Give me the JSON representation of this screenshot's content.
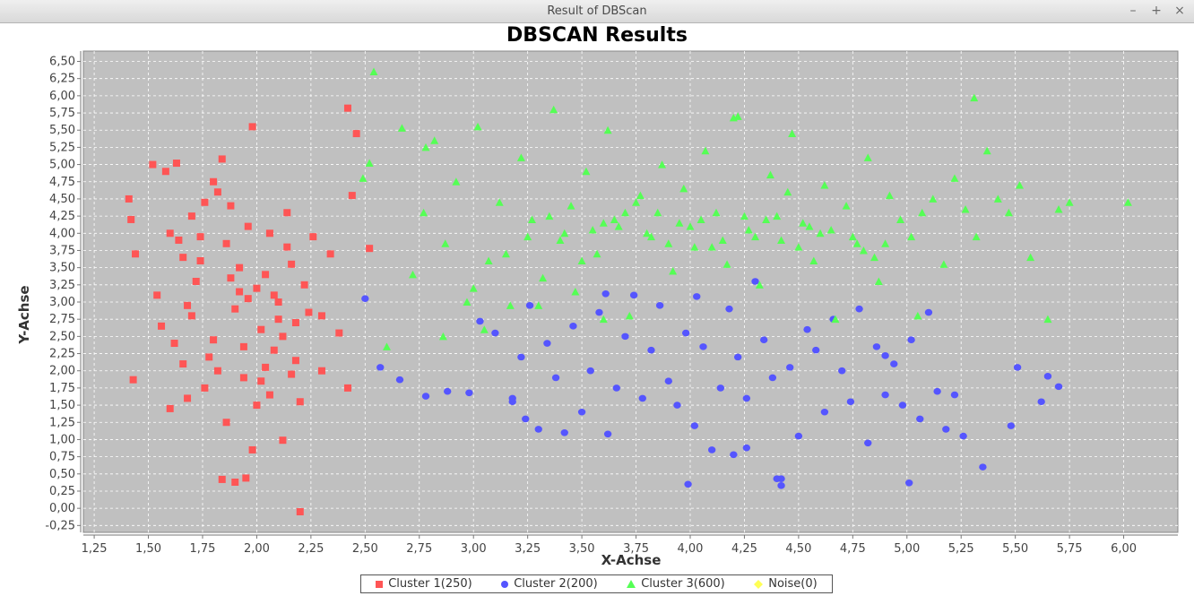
{
  "window": {
    "title": "Result of DBScan",
    "buttons": [
      "–",
      "+",
      "×"
    ]
  },
  "colors": {
    "plot_bg": "#c0c0c0",
    "cluster1": "#ff5555",
    "cluster2": "#5555ff",
    "cluster3": "#55ff55",
    "noise": "#ffff55"
  },
  "chart_data": {
    "type": "scatter",
    "title": "DBSCAN Results",
    "xlabel": "X-Achse",
    "ylabel": "Y-Achse",
    "xlim": [
      1.2,
      6.25
    ],
    "ylim": [
      -0.35,
      6.65
    ],
    "grid": true,
    "legend_position": "bottom",
    "x_ticks": [
      "1,25",
      "1,50",
      "1,75",
      "2,00",
      "2,25",
      "2,50",
      "2,75",
      "3,00",
      "3,25",
      "3,50",
      "3,75",
      "4,00",
      "4,25",
      "4,50",
      "4,75",
      "5,00",
      "5,25",
      "5,50",
      "5,75",
      "6,00"
    ],
    "y_ticks": [
      "-0,25",
      "0,00",
      "0,25",
      "0,50",
      "0,75",
      "1,00",
      "1,25",
      "1,50",
      "1,75",
      "2,00",
      "2,25",
      "2,50",
      "2,75",
      "3,00",
      "3,25",
      "3,50",
      "3,75",
      "4,00",
      "4,25",
      "4,50",
      "4,75",
      "5,00",
      "5,25",
      "5,50",
      "5,75",
      "6,00",
      "6,25",
      "6,50"
    ],
    "series": [
      {
        "name": "Cluster 1(250)",
        "marker": "square",
        "color": "#ff5555",
        "x": [
          1.41,
          1.44,
          1.43,
          1.52,
          1.58,
          1.63,
          1.42,
          1.54,
          1.56,
          1.6,
          1.62,
          1.64,
          1.66,
          1.68,
          1.7,
          1.72,
          1.74,
          1.76,
          1.78,
          1.8,
          1.82,
          1.84,
          1.86,
          1.88,
          1.9,
          1.92,
          1.94,
          1.96,
          1.98,
          2.0,
          2.02,
          2.04,
          2.06,
          2.08,
          2.1,
          2.12,
          2.14,
          2.16,
          2.18,
          2.2,
          2.22,
          2.24,
          2.26,
          2.3,
          2.34,
          2.38,
          2.42,
          2.46,
          2.52,
          2.42,
          2.44,
          1.98,
          1.86,
          1.9,
          2.2,
          1.84,
          1.95,
          2.12,
          2.3,
          1.66,
          1.76,
          1.92,
          2.04,
          2.16,
          1.7,
          1.88,
          2.02,
          2.14,
          1.8,
          1.96,
          2.1,
          1.74,
          2.06,
          1.82,
          2.18,
          1.94,
          1.6,
          1.68,
          2.0,
          2.08
        ],
        "y": [
          4.5,
          3.7,
          1.87,
          5.0,
          4.9,
          5.02,
          4.2,
          3.1,
          2.65,
          4.0,
          2.4,
          3.9,
          2.1,
          1.6,
          2.8,
          3.3,
          3.6,
          1.75,
          2.2,
          4.75,
          2.0,
          5.08,
          3.85,
          4.4,
          2.9,
          3.5,
          1.9,
          4.1,
          0.85,
          3.2,
          2.6,
          3.4,
          4.0,
          2.3,
          3.0,
          2.5,
          3.8,
          1.95,
          2.7,
          1.55,
          3.25,
          2.85,
          3.95,
          2.8,
          3.7,
          2.55,
          1.75,
          5.45,
          3.78,
          5.82,
          4.55,
          5.55,
          1.25,
          0.38,
          -0.05,
          0.42,
          0.44,
          0.99,
          2.0,
          3.65,
          4.45,
          3.15,
          2.05,
          3.55,
          4.25,
          3.35,
          1.85,
          4.3,
          2.45,
          3.05,
          2.75,
          3.95,
          1.65,
          4.6,
          2.15,
          2.35,
          1.45,
          2.95,
          1.5,
          3.1
        ]
      },
      {
        "name": "Cluster 2(200)",
        "marker": "circle",
        "color": "#5555ff",
        "x": [
          2.5,
          2.57,
          2.66,
          2.78,
          2.88,
          2.98,
          3.03,
          3.1,
          3.18,
          3.22,
          3.26,
          3.3,
          3.34,
          3.38,
          3.42,
          3.46,
          3.5,
          3.54,
          3.58,
          3.62,
          3.66,
          3.7,
          3.74,
          3.78,
          3.82,
          3.86,
          3.9,
          3.94,
          3.98,
          4.02,
          4.06,
          4.1,
          4.14,
          4.18,
          4.22,
          4.26,
          4.3,
          4.34,
          4.38,
          4.42,
          4.46,
          4.5,
          4.54,
          4.58,
          4.62,
          4.66,
          4.7,
          4.74,
          4.78,
          4.82,
          4.86,
          4.9,
          4.94,
          4.98,
          5.02,
          5.06,
          5.1,
          5.14,
          5.18,
          5.22,
          5.26,
          5.35,
          5.48,
          5.51,
          5.62,
          5.65,
          5.7,
          3.99,
          4.4,
          4.42,
          4.2,
          4.26,
          4.03,
          3.61,
          3.24,
          3.18,
          4.9,
          5.01
        ],
        "y": [
          3.05,
          2.05,
          1.87,
          1.63,
          1.7,
          1.68,
          2.72,
          2.55,
          1.6,
          2.2,
          2.95,
          1.15,
          2.4,
          1.9,
          1.1,
          2.65,
          1.4,
          2.0,
          2.85,
          1.08,
          1.75,
          2.5,
          3.1,
          1.6,
          2.3,
          2.95,
          1.85,
          1.5,
          2.55,
          1.2,
          2.35,
          0.85,
          1.75,
          2.9,
          2.2,
          1.6,
          3.3,
          2.45,
          1.9,
          0.43,
          2.05,
          1.05,
          2.6,
          2.3,
          1.4,
          2.75,
          2.0,
          1.55,
          2.9,
          0.95,
          2.35,
          1.65,
          2.1,
          1.5,
          2.45,
          1.3,
          2.85,
          1.7,
          1.15,
          1.65,
          1.05,
          0.6,
          1.2,
          2.05,
          1.55,
          1.92,
          1.77,
          0.35,
          0.43,
          0.33,
          0.78,
          0.88,
          3.08,
          3.12,
          1.3,
          1.55,
          2.22,
          0.37
        ]
      },
      {
        "name": "Cluster 3(600)",
        "marker": "triangle",
        "color": "#55ff55",
        "x": [
          2.54,
          2.49,
          2.52,
          2.67,
          2.72,
          2.77,
          2.82,
          2.87,
          2.92,
          2.97,
          3.02,
          3.07,
          3.12,
          3.17,
          3.22,
          3.27,
          3.32,
          3.37,
          3.42,
          3.47,
          3.52,
          3.57,
          3.62,
          3.67,
          3.72,
          3.77,
          3.82,
          3.87,
          3.92,
          3.97,
          4.02,
          4.07,
          4.12,
          4.17,
          4.22,
          4.27,
          4.32,
          4.37,
          4.42,
          4.47,
          4.52,
          4.57,
          4.62,
          4.67,
          4.72,
          4.77,
          4.82,
          4.87,
          4.92,
          4.97,
          5.02,
          5.07,
          5.12,
          5.17,
          5.22,
          5.27,
          5.32,
          5.37,
          5.42,
          5.47,
          5.52,
          5.57,
          5.65,
          5.7,
          5.75,
          6.02,
          5.31,
          4.2,
          3.35,
          3.6,
          3.8,
          4.05,
          4.3,
          4.55,
          4.8,
          3.45,
          3.7,
          3.95,
          4.15,
          4.4,
          4.65,
          4.9,
          3.25,
          3.55,
          3.85,
          4.1,
          4.35,
          4.6,
          4.85,
          3.15,
          3.4,
          3.65,
          3.9,
          4.0,
          4.25,
          4.5,
          4.75,
          3.5,
          3.75,
          4.45,
          2.86,
          2.78,
          3.05,
          3.6,
          3.3,
          2.6,
          3.0,
          5.05
        ],
        "y": [
          6.35,
          4.8,
          5.02,
          5.53,
          3.4,
          4.3,
          5.35,
          3.85,
          4.75,
          3.0,
          5.55,
          3.6,
          4.45,
          2.95,
          5.1,
          4.2,
          3.35,
          5.8,
          4.0,
          3.15,
          4.9,
          3.7,
          5.5,
          4.1,
          2.8,
          4.55,
          3.95,
          5.0,
          3.45,
          4.65,
          3.8,
          5.2,
          4.3,
          3.55,
          5.7,
          4.05,
          3.25,
          4.85,
          3.9,
          5.45,
          4.15,
          3.6,
          4.7,
          2.75,
          4.4,
          3.85,
          5.1,
          3.3,
          4.55,
          4.2,
          3.95,
          4.3,
          4.5,
          3.55,
          4.8,
          4.35,
          3.95,
          5.2,
          4.5,
          4.3,
          4.7,
          3.65,
          2.75,
          4.35,
          4.45,
          4.45,
          5.97,
          5.68,
          4.25,
          4.15,
          4.0,
          4.2,
          3.95,
          4.1,
          3.75,
          4.4,
          4.3,
          4.15,
          3.9,
          4.25,
          4.05,
          3.85,
          3.95,
          4.05,
          4.3,
          3.8,
          4.2,
          4.0,
          3.65,
          3.7,
          3.9,
          4.2,
          3.85,
          4.1,
          4.25,
          3.8,
          3.95,
          3.6,
          4.45,
          4.6,
          2.5,
          5.25,
          2.6,
          2.75,
          2.95,
          2.35,
          3.2,
          2.8
        ]
      },
      {
        "name": "Noise(0)",
        "marker": "diamond",
        "color": "#ffff55",
        "x": [],
        "y": []
      }
    ]
  }
}
